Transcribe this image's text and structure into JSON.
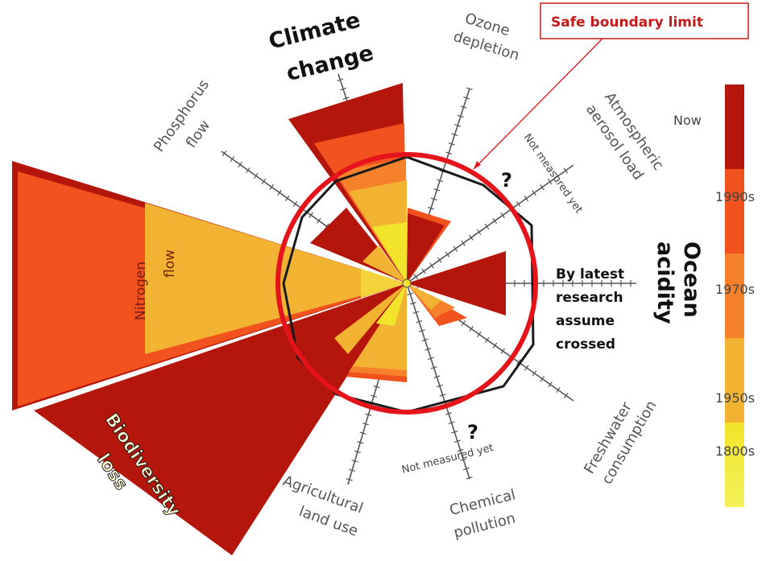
{
  "callout": {
    "label": "Safe boundary limit"
  },
  "colors": {
    "now": "#b5160c",
    "s1990": "#f2521e",
    "s1970": "#f5822b",
    "s1950": "#f3b332",
    "s1800": "#f1e42a",
    "safe_ring": "#e5141b",
    "boundary_polygon": "#1a1a1a",
    "axis": "#555555"
  },
  "legend": {
    "now": "Now",
    "s1990": "1990s",
    "s1970": "1970s",
    "s1950": "1950s",
    "s1800": "1800s"
  },
  "labels": {
    "climate_1": "Climate",
    "climate_2": "change",
    "ozone_1": "Ozone",
    "ozone_2": "depletion",
    "aerosol_1": "Atmospheric",
    "aerosol_2": "aerosol load",
    "not_measured_top": "Not measured yet",
    "not_measured_bottom": "Not measured yet",
    "ocean_1": "Ocean",
    "ocean_2": "acidity",
    "latest_1": "By latest",
    "latest_2": "research",
    "latest_3": "assume",
    "latest_4": "crossed",
    "freshwater_1": "Freshwater",
    "freshwater_2": "consumption",
    "chemical_1": "Chemical",
    "chemical_2": "pollution",
    "agri_1": "Agricultural",
    "agri_2": "land use",
    "biodiv_1": "Biodiversity",
    "biodiv_2": "loss",
    "nitrogen": "Nitrogen",
    "flow": "flow",
    "phosphorus_1": "Phosphorus",
    "phosphorus_2": "flow",
    "question": "?"
  }
}
